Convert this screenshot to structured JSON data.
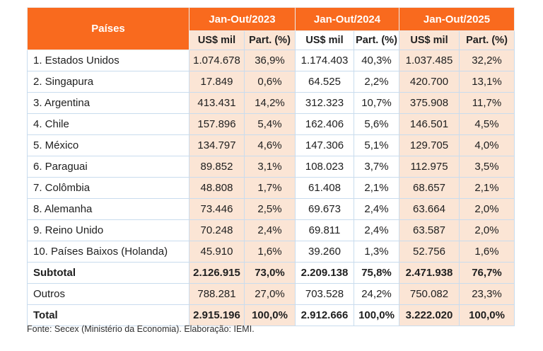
{
  "colors": {
    "header_orange": "#F96A1E",
    "column_peach": "#FBE5D5",
    "grid_border": "#C9DCEE",
    "text": "#202020"
  },
  "table": {
    "corner_header": "Países",
    "year_groups": [
      {
        "label": "Jan-Out/2023",
        "sub_us": "US$ mil",
        "sub_part": "Part. (%)"
      },
      {
        "label": "Jan-Out/2024",
        "sub_us": "US$ mil",
        "sub_part": "Part. (%)"
      },
      {
        "label": "Jan-Out/2025",
        "sub_us": "US$ mil",
        "sub_part": "Part. (%)"
      }
    ],
    "rows": [
      {
        "label": "1. Estados Unidos",
        "values": [
          "1.074.678",
          "36,9%",
          "1.174.403",
          "40,3%",
          "1.037.485",
          "32,2%"
        ],
        "bold": false
      },
      {
        "label": "2. Singapura",
        "values": [
          "17.849",
          "0,6%",
          "64.525",
          "2,2%",
          "420.700",
          "13,1%"
        ],
        "bold": false
      },
      {
        "label": "3. Argentina",
        "values": [
          "413.431",
          "14,2%",
          "312.323",
          "10,7%",
          "375.908",
          "11,7%"
        ],
        "bold": false
      },
      {
        "label": "4. Chile",
        "values": [
          "157.896",
          "5,4%",
          "162.406",
          "5,6%",
          "146.501",
          "4,5%"
        ],
        "bold": false
      },
      {
        "label": "5. México",
        "values": [
          "134.797",
          "4,6%",
          "147.306",
          "5,1%",
          "129.705",
          "4,0%"
        ],
        "bold": false
      },
      {
        "label": "6. Paraguai",
        "values": [
          "89.852",
          "3,1%",
          "108.023",
          "3,7%",
          "112.975",
          "3,5%"
        ],
        "bold": false
      },
      {
        "label": "7. Colômbia",
        "values": [
          "48.808",
          "1,7%",
          "61.408",
          "2,1%",
          "68.657",
          "2,1%"
        ],
        "bold": false
      },
      {
        "label": "8. Alemanha",
        "values": [
          "73.446",
          "2,5%",
          "69.673",
          "2,4%",
          "63.664",
          "2,0%"
        ],
        "bold": false
      },
      {
        "label": "9. Reino Unido",
        "values": [
          "70.248",
          "2,4%",
          "69.811",
          "2,4%",
          "63.587",
          "2,0%"
        ],
        "bold": false
      },
      {
        "label": "10. Países Baixos (Holanda)",
        "values": [
          "45.910",
          "1,6%",
          "39.260",
          "1,3%",
          "52.756",
          "1,6%"
        ],
        "bold": false
      },
      {
        "label": "Subtotal",
        "values": [
          "2.126.915",
          "73,0%",
          "2.209.138",
          "75,8%",
          "2.471.938",
          "76,7%"
        ],
        "bold": true
      },
      {
        "label": "Outros",
        "values": [
          "788.281",
          "27,0%",
          "703.528",
          "24,2%",
          "750.082",
          "23,3%"
        ],
        "bold": false
      },
      {
        "label": "Total",
        "values": [
          "2.915.196",
          "100,0%",
          "2.912.666",
          "100,0%",
          "3.222.020",
          "100,0%"
        ],
        "bold": true
      }
    ]
  },
  "footer": {
    "source_note": "Fonte: Secex (Ministério da Economia). Elaboração: IEMI."
  }
}
